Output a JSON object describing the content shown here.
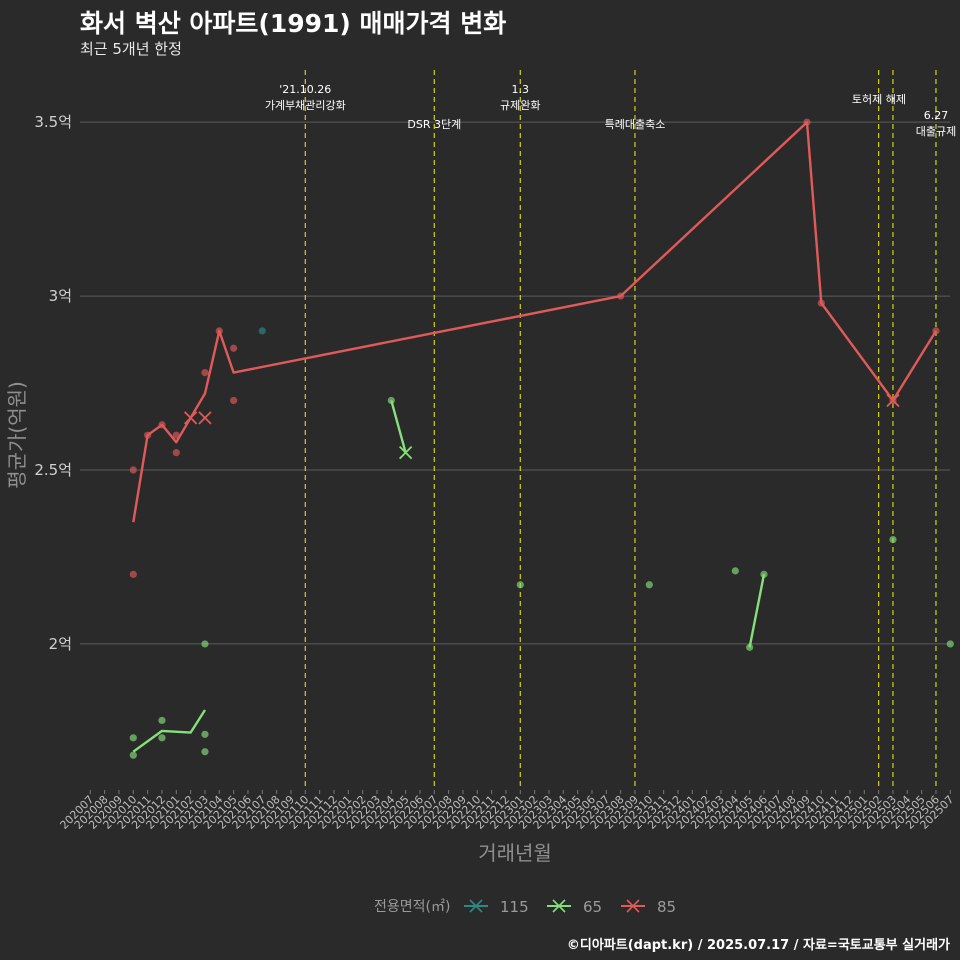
{
  "header": {
    "title": "화서 벽산 아파트(1991) 매매가격 변화",
    "subtitle": "최근 5개년 한정",
    "caption": "©디아파트(dapt.kr) / 2025.07.17 / 자료=국토교통부 실거래가"
  },
  "colors": {
    "background": "#2b2a2b",
    "grid": "#5c5c5c",
    "annotation_line": "#d4d40a",
    "s115": "#2a8a84",
    "s65": "#86e07a",
    "s85": "#e05a5a"
  },
  "chart_data": {
    "type": "line",
    "xlabel": "거래년월",
    "ylabel": "평균가(억원)",
    "ylim": [
      1.58,
      3.65
    ],
    "y_ticks": [
      {
        "value": 2.0,
        "label": "2억"
      },
      {
        "value": 2.5,
        "label": "2.5억"
      },
      {
        "value": 3.0,
        "label": "3억"
      },
      {
        "value": 3.5,
        "label": "3.5억"
      }
    ],
    "x_categories": [
      "202007",
      "202008",
      "202009",
      "202010",
      "202011",
      "202012",
      "202101",
      "202102",
      "202103",
      "202104",
      "202105",
      "202106",
      "202107",
      "202108",
      "202109",
      "202110",
      "202111",
      "202112",
      "202201",
      "202202",
      "202203",
      "202204",
      "202205",
      "202206",
      "202207",
      "202208",
      "202209",
      "202210",
      "202211",
      "202212",
      "202301",
      "202302",
      "202303",
      "202304",
      "202305",
      "202306",
      "202307",
      "202308",
      "202309",
      "202310",
      "202311",
      "202312",
      "202401",
      "202402",
      "202403",
      "202404",
      "202405",
      "202406",
      "202407",
      "202408",
      "202409",
      "202410",
      "202411",
      "202412",
      "202501",
      "202502",
      "202503",
      "202504",
      "202505",
      "202506",
      "202507"
    ],
    "legend_title": "전용면적(㎡)",
    "legend": [
      {
        "name": "115",
        "color_key": "s115"
      },
      {
        "name": "65",
        "color_key": "s65"
      },
      {
        "name": "85",
        "color_key": "s85"
      }
    ],
    "annotations": [
      {
        "x": "202110",
        "lines": [
          "'21.10.26",
          "가계부채관리강화"
        ],
        "level": "high"
      },
      {
        "x": "202207",
        "lines": [
          "DSR 3단계"
        ],
        "level": "low"
      },
      {
        "x": "202301",
        "lines": [
          "1.3",
          "규제완화"
        ],
        "level": "high"
      },
      {
        "x": "202309",
        "lines": [
          "특례대출축소"
        ],
        "level": "low"
      },
      {
        "x": "202502",
        "lines": [],
        "level": "none"
      },
      {
        "x": "202503",
        "lines": [
          "토허제 해제"
        ],
        "level": "mid"
      },
      {
        "x": "202506",
        "lines": [
          "6.27",
          "대출규제"
        ],
        "level": "right"
      }
    ],
    "series": [
      {
        "name": "85",
        "color_key": "s85",
        "line": [
          [
            "202010",
            2.35
          ],
          [
            "202011",
            2.6
          ],
          [
            "202012",
            2.63
          ],
          [
            "202101",
            2.58
          ],
          [
            "202102",
            2.65
          ],
          [
            "202103",
            2.72
          ],
          [
            "202104",
            2.9
          ],
          [
            "202105",
            2.78
          ],
          [
            "202308",
            3.0
          ],
          [
            "202409",
            3.5
          ],
          [
            "202410",
            2.98
          ],
          [
            "202503",
            2.7
          ],
          [
            "202506",
            2.9
          ]
        ],
        "points": [
          [
            "202010",
            2.5
          ],
          [
            "202010",
            2.2
          ],
          [
            "202011",
            2.6
          ],
          [
            "202012",
            2.63
          ],
          [
            "202101",
            2.6
          ],
          [
            "202101",
            2.55
          ],
          [
            "202103",
            2.78
          ],
          [
            "202104",
            2.9
          ],
          [
            "202105",
            2.85
          ],
          [
            "202105",
            2.7
          ],
          [
            "202308",
            3.0
          ],
          [
            "202409",
            3.5
          ],
          [
            "202410",
            2.98
          ],
          [
            "202503",
            2.7
          ],
          [
            "202506",
            2.9
          ]
        ],
        "crosses": [
          [
            "202102",
            2.65
          ],
          [
            "202103",
            2.65
          ],
          [
            "202503",
            2.7
          ]
        ]
      },
      {
        "name": "65",
        "color_key": "s65",
        "line_segments": [
          [
            [
              "202010",
              1.69
            ],
            [
              "202012",
              1.75
            ],
            [
              "202102",
              1.745
            ],
            [
              "202103",
              1.81
            ]
          ],
          [
            [
              "202204",
              2.7
            ],
            [
              "202205",
              2.55
            ]
          ],
          [
            [
              "202405",
              1.99
            ],
            [
              "202406",
              2.2
            ]
          ]
        ],
        "points": [
          [
            "202010",
            1.73
          ],
          [
            "202010",
            1.68
          ],
          [
            "202012",
            1.78
          ],
          [
            "202012",
            1.73
          ],
          [
            "202103",
            2.0
          ],
          [
            "202103",
            1.74
          ],
          [
            "202103",
            1.69
          ],
          [
            "202204",
            2.7
          ],
          [
            "202301",
            2.17
          ],
          [
            "202310",
            2.17
          ],
          [
            "202404",
            2.21
          ],
          [
            "202405",
            1.99
          ],
          [
            "202406",
            2.2
          ],
          [
            "202503",
            2.3
          ],
          [
            "202507",
            2.0
          ]
        ],
        "crosses": [
          [
            "202205",
            2.55
          ]
        ]
      },
      {
        "name": "115",
        "color_key": "s115",
        "points": [
          [
            "202107",
            2.9
          ]
        ]
      }
    ]
  }
}
